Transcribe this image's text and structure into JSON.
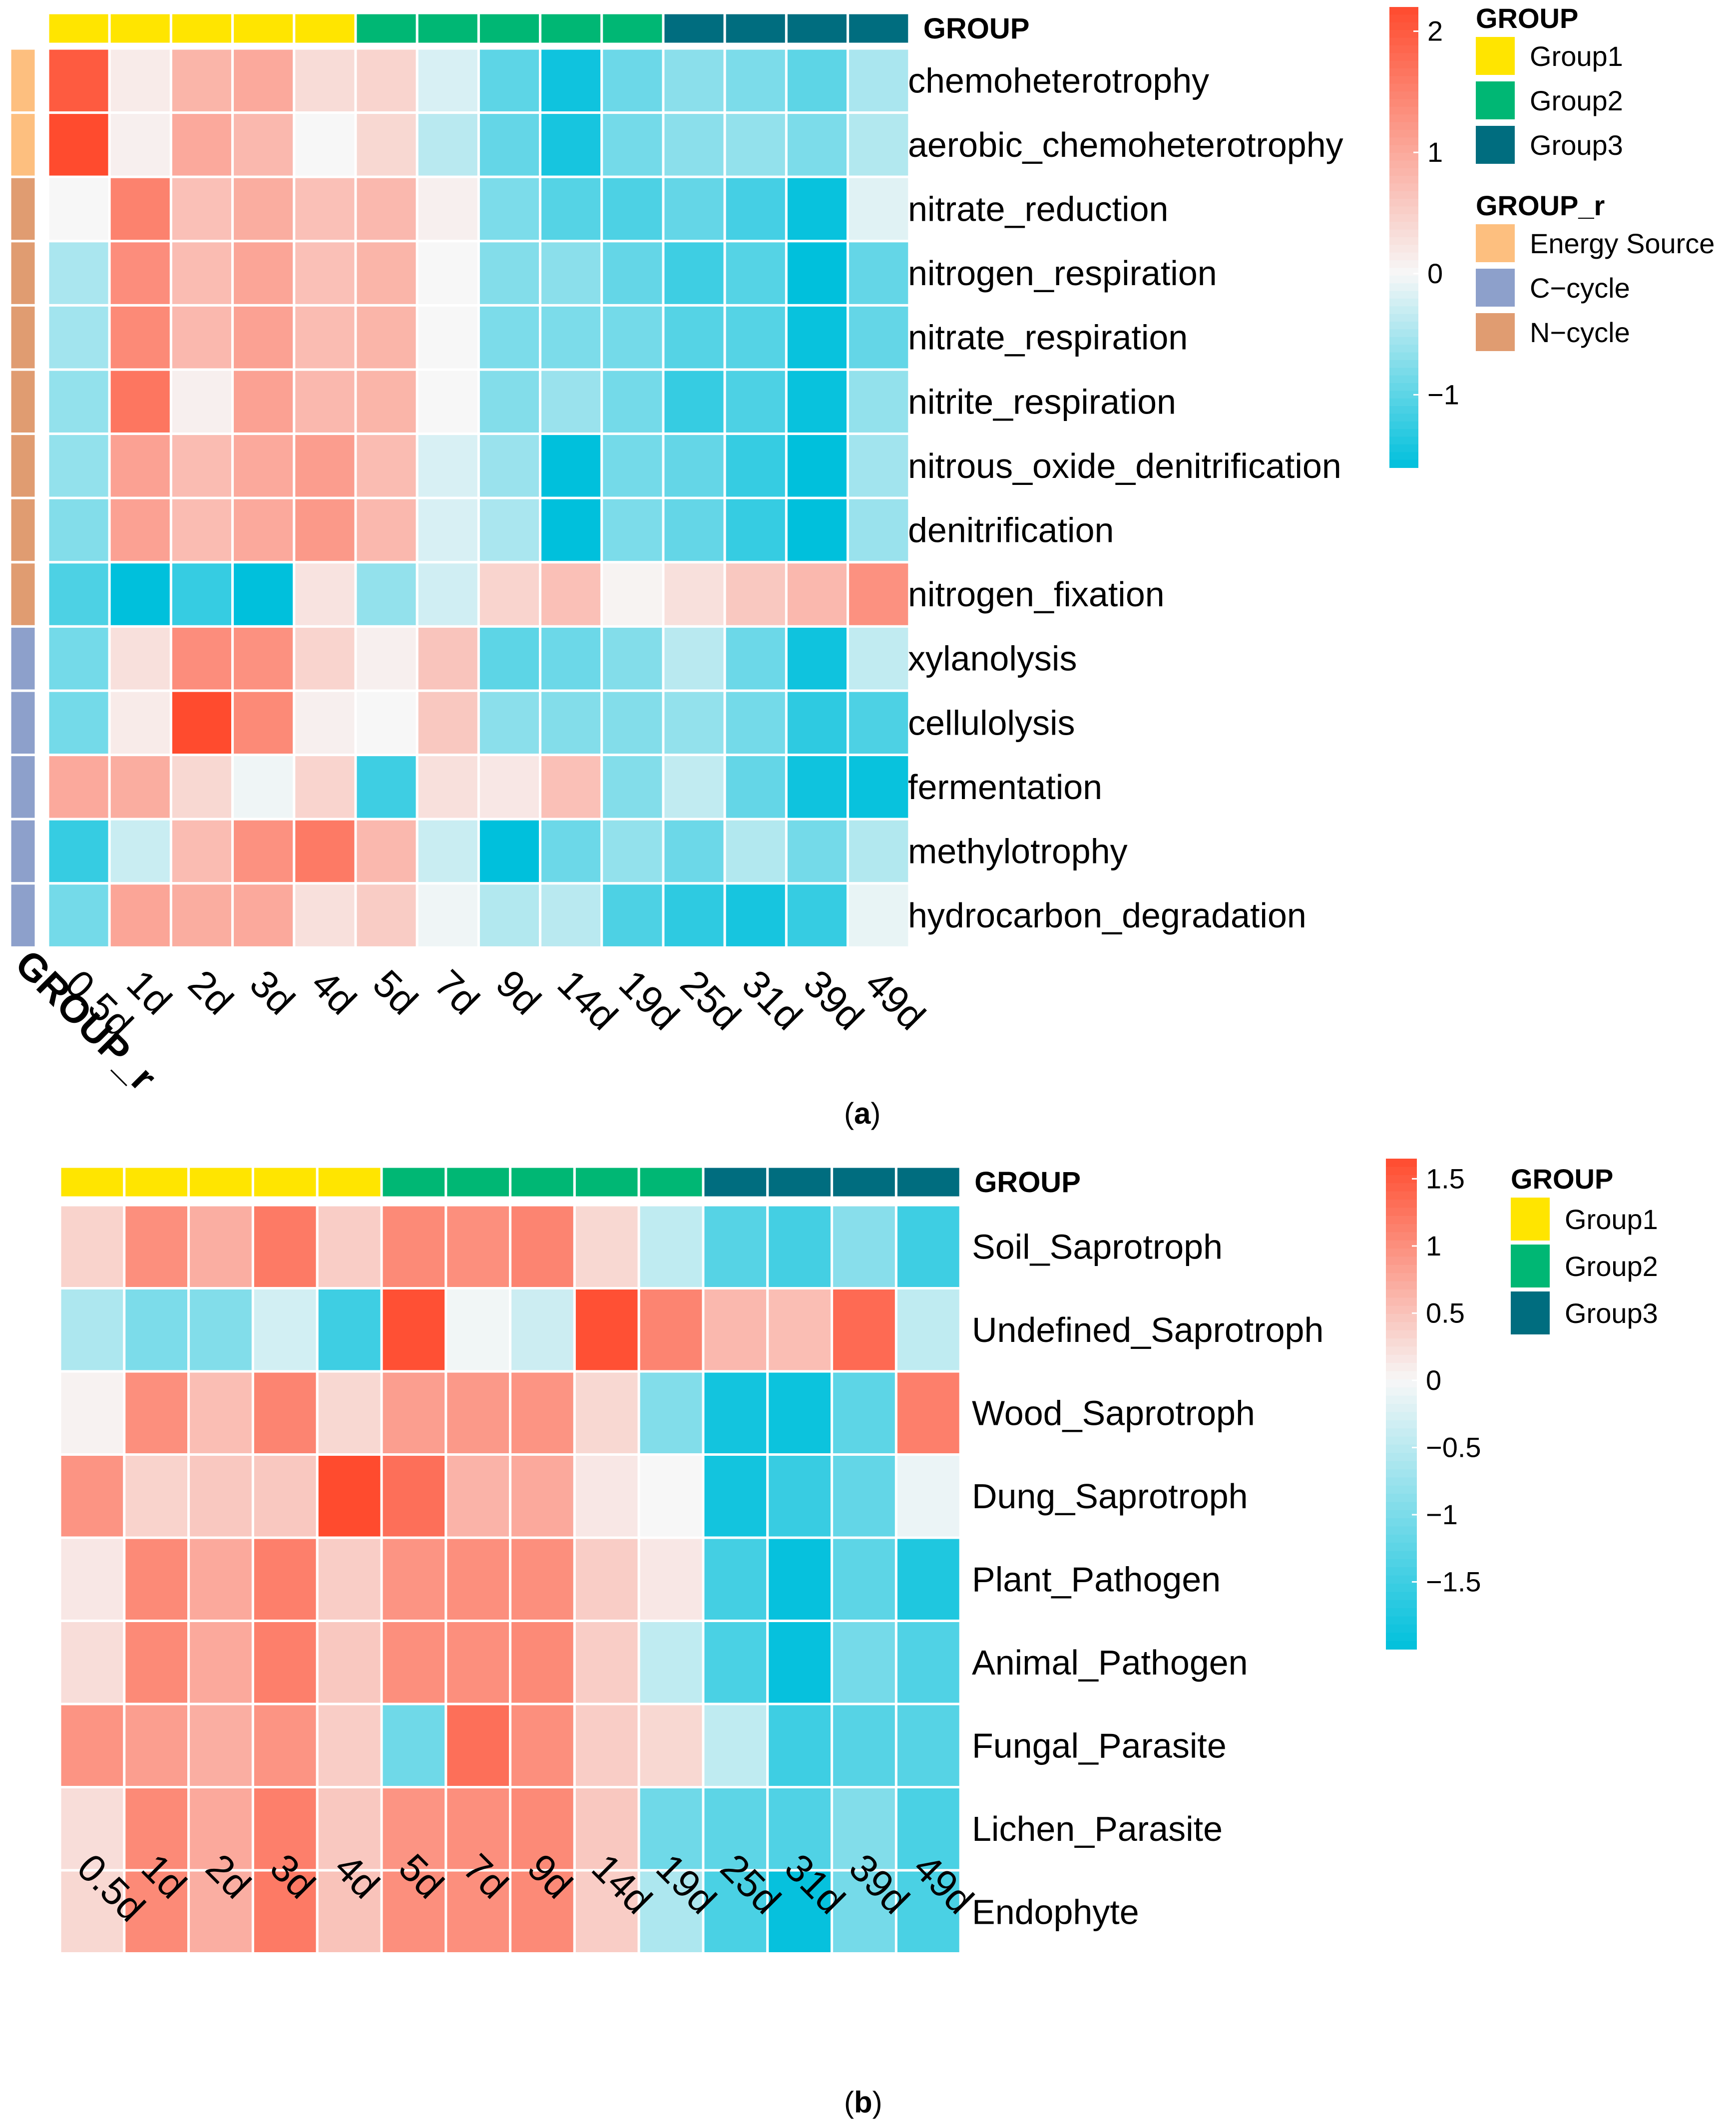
{
  "chart_data": [
    {
      "type": "heatmap",
      "caption": "a",
      "columns": [
        "0.5d",
        "1d",
        "2d",
        "3d",
        "4d",
        "5d",
        "7d",
        "9d",
        "14d",
        "19d",
        "25d",
        "31d",
        "39d",
        "49d"
      ],
      "rows": [
        "chemoheterotrophy",
        "aerobic_chemoheterotrophy",
        "nitrate_reduction",
        "nitrogen_respiration",
        "nitrate_respiration",
        "nitrite_respiration",
        "nitrous_oxide_denitrification",
        "denitrification",
        "nitrogen_fixation",
        "xylanolysis",
        "cellulolysis",
        "fermentation",
        "methylotrophy",
        "hydrocarbon_degradation"
      ],
      "column_annotation": {
        "name": "GROUP",
        "values": [
          "Group1",
          "Group1",
          "Group1",
          "Group1",
          "Group1",
          "Group2",
          "Group2",
          "Group2",
          "Group2",
          "Group2",
          "Group3",
          "Group3",
          "Group3",
          "Group3"
        ],
        "legend": [
          {
            "label": "Group1",
            "color": "#FFE500"
          },
          {
            "label": "Group2",
            "color": "#00B774"
          },
          {
            "label": "Group3",
            "color": "#006D7F"
          }
        ]
      },
      "row_annotation": {
        "name": "GROUP_r",
        "axis_label": "GROUP_r",
        "values": [
          "Energy Source",
          "Energy Source",
          "N−cycle",
          "N−cycle",
          "N−cycle",
          "N−cycle",
          "N−cycle",
          "N−cycle",
          "N−cycle",
          "C−cycle",
          "C−cycle",
          "C−cycle",
          "C−cycle",
          "C−cycle"
        ],
        "legend": [
          {
            "label": "Energy Source",
            "color": "#FDBF7F"
          },
          {
            "label": "C−cycle",
            "color": "#8DA0CB"
          },
          {
            "label": "N−cycle",
            "color": "#E09C71"
          }
        ]
      },
      "color_scale": {
        "min": -1.6,
        "max": 2.2,
        "ticks": [
          {
            "value": 2,
            "label": "2"
          },
          {
            "value": 1,
            "label": "1"
          },
          {
            "value": 0,
            "label": "0"
          },
          {
            "value": -1,
            "label": "−1"
          }
        ],
        "low_color": "#00C0DC",
        "mid_color": "#F7F7F7",
        "high_color": "#FF4B2E"
      },
      "values": [
        [
          2.0,
          0.15,
          0.85,
          1.0,
          0.35,
          0.45,
          -0.2,
          -1.0,
          -1.5,
          -0.9,
          -0.7,
          -0.8,
          -1.0,
          -0.5
        ],
        [
          2.2,
          0.1,
          1.0,
          0.8,
          0.0,
          0.4,
          -0.4,
          -0.95,
          -1.45,
          -0.85,
          -0.7,
          -0.65,
          -0.8,
          -0.45
        ],
        [
          0.0,
          1.5,
          0.7,
          0.95,
          0.7,
          0.8,
          0.1,
          -0.8,
          -1.05,
          -1.1,
          -0.95,
          -1.15,
          -1.55,
          -0.15
        ],
        [
          -0.5,
          1.35,
          0.75,
          1.05,
          0.7,
          0.85,
          0.0,
          -0.75,
          -0.7,
          -0.95,
          -1.2,
          -1.05,
          -1.6,
          -0.95
        ],
        [
          -0.55,
          1.4,
          0.8,
          1.1,
          0.75,
          0.85,
          0.0,
          -0.8,
          -0.8,
          -0.85,
          -1.05,
          -1.05,
          -1.55,
          -0.95
        ],
        [
          -0.65,
          1.65,
          0.1,
          1.1,
          0.8,
          0.85,
          0.0,
          -0.75,
          -0.6,
          -0.85,
          -1.25,
          -1.1,
          -1.55,
          -0.65
        ],
        [
          -0.65,
          1.1,
          0.75,
          1.0,
          1.15,
          0.75,
          -0.2,
          -0.6,
          -1.6,
          -0.85,
          -0.95,
          -1.25,
          -1.6,
          -0.55
        ],
        [
          -0.75,
          1.1,
          0.75,
          1.0,
          1.2,
          0.8,
          -0.2,
          -0.5,
          -1.6,
          -0.8,
          -0.95,
          -1.25,
          -1.6,
          -0.6
        ],
        [
          -1.1,
          -1.6,
          -1.25,
          -1.6,
          0.25,
          -0.65,
          -0.25,
          0.45,
          0.7,
          0.05,
          0.3,
          0.6,
          0.8,
          1.3
        ],
        [
          -0.85,
          0.3,
          1.35,
          1.3,
          0.45,
          0.1,
          0.65,
          -1.0,
          -0.9,
          -0.75,
          -0.4,
          -0.9,
          -1.5,
          -0.35
        ],
        [
          -0.85,
          0.15,
          2.2,
          1.4,
          0.1,
          0.0,
          0.6,
          -0.7,
          -0.75,
          -0.75,
          -0.65,
          -0.85,
          -1.3,
          -1.1
        ],
        [
          1.0,
          0.95,
          0.4,
          -0.05,
          0.45,
          -1.2,
          0.3,
          0.2,
          0.7,
          -0.75,
          -0.35,
          -0.95,
          -1.5,
          -1.55
        ],
        [
          -1.25,
          -0.3,
          0.75,
          1.3,
          1.6,
          0.8,
          -0.3,
          -1.6,
          -0.9,
          -0.65,
          -0.9,
          -0.45,
          -0.85,
          -0.45
        ],
        [
          -0.85,
          1.05,
          0.95,
          1.0,
          0.3,
          0.55,
          -0.05,
          -0.45,
          -0.4,
          -1.1,
          -1.3,
          -1.45,
          -1.25,
          -0.1
        ]
      ]
    },
    {
      "type": "heatmap",
      "caption": "b",
      "columns": [
        "0.5d",
        "1d",
        "2d",
        "3d",
        "4d",
        "5d",
        "7d",
        "9d",
        "14d",
        "19d",
        "25d",
        "31d",
        "39d",
        "49d"
      ],
      "rows": [
        "Soil_Saprotroph",
        "Undefined_Saprotroph",
        "Wood_Saprotroph",
        "Dung_Saprotroph",
        "Plant_Pathogen",
        "Animal_Pathogen",
        "Fungal_Parasite",
        "Lichen_Parasite",
        "Endophyte"
      ],
      "column_annotation": {
        "name": "GROUP",
        "values": [
          "Group1",
          "Group1",
          "Group1",
          "Group1",
          "Group1",
          "Group2",
          "Group2",
          "Group2",
          "Group2",
          "Group2",
          "Group3",
          "Group3",
          "Group3",
          "Group3"
        ],
        "legend": [
          {
            "label": "Group1",
            "color": "#FFE500"
          },
          {
            "label": "Group2",
            "color": "#00B774"
          },
          {
            "label": "Group3",
            "color": "#006D7F"
          }
        ]
      },
      "color_scale": {
        "min": -2.0,
        "max": 1.65,
        "ticks": [
          {
            "value": 1.5,
            "label": "1.5"
          },
          {
            "value": 1,
            "label": "1"
          },
          {
            "value": 0.5,
            "label": "0.5"
          },
          {
            "value": 0,
            "label": "0"
          },
          {
            "value": -0.5,
            "label": "−0.5"
          },
          {
            "value": -1,
            "label": "−1"
          },
          {
            "value": -1.5,
            "label": "−1.5"
          }
        ],
        "low_color": "#00C0DC",
        "mid_color": "#F7F7F7",
        "high_color": "#FF4B2E"
      },
      "values": [
        [
          0.35,
          1.0,
          0.7,
          1.2,
          0.4,
          1.05,
          1.0,
          1.1,
          0.3,
          -0.45,
          -1.3,
          -1.45,
          -0.9,
          -1.5
        ],
        [
          -0.6,
          -1.0,
          -0.95,
          -0.3,
          -1.5,
          1.6,
          -0.05,
          -0.35,
          1.6,
          1.1,
          0.6,
          0.55,
          1.35,
          -0.45
        ],
        [
          0.05,
          1.0,
          0.55,
          1.1,
          0.3,
          0.85,
          0.9,
          0.95,
          0.3,
          -0.95,
          -1.85,
          -1.9,
          -1.25,
          1.15
        ],
        [
          0.95,
          0.35,
          0.45,
          0.45,
          1.65,
          1.3,
          0.65,
          0.75,
          0.15,
          0.0,
          -1.85,
          -1.55,
          -1.2,
          -0.1
        ],
        [
          0.15,
          1.05,
          0.75,
          1.15,
          0.4,
          0.95,
          1.0,
          1.0,
          0.4,
          0.15,
          -1.45,
          -1.95,
          -1.25,
          -1.75
        ],
        [
          0.25,
          1.05,
          0.75,
          1.15,
          0.45,
          1.0,
          1.0,
          1.05,
          0.4,
          -0.45,
          -1.4,
          -1.95,
          -1.05,
          -1.35
        ],
        [
          0.95,
          0.85,
          0.7,
          0.95,
          0.4,
          -1.1,
          1.3,
          1.0,
          0.4,
          0.3,
          -0.45,
          -1.5,
          -1.3,
          -1.3
        ],
        [
          0.25,
          1.05,
          0.75,
          1.15,
          0.45,
          0.95,
          1.0,
          1.05,
          0.45,
          -1.1,
          -1.25,
          -1.35,
          -0.95,
          -1.4
        ],
        [
          0.3,
          1.05,
          0.7,
          1.2,
          0.5,
          1.0,
          1.0,
          1.05,
          0.4,
          -0.6,
          -1.4,
          -1.95,
          -1.05,
          -1.4
        ]
      ]
    }
  ],
  "captions": {
    "a": "(a)",
    "b": "(b)",
    "a_letter": "a",
    "b_letter": "b"
  }
}
